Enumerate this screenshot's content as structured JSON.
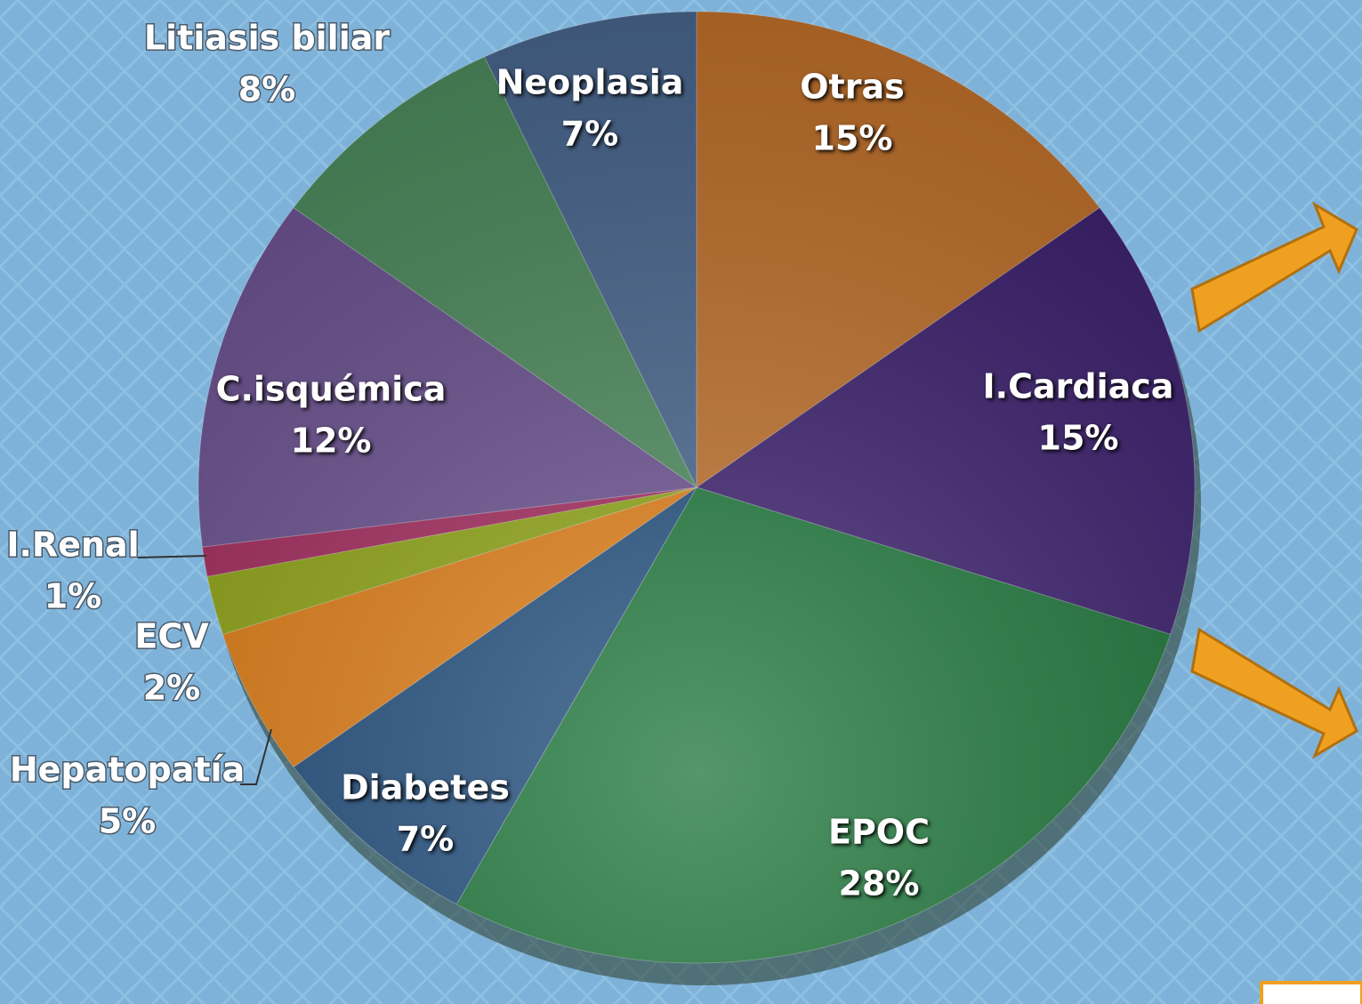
{
  "chart_data": {
    "type": "pie",
    "categories": [
      "Otras",
      "I.Cardiaca",
      "EPOC",
      "Diabetes",
      "Hepatopatía",
      "ECV",
      "I.Renal",
      "C.isquémica",
      "Litiasis biliar",
      "Neoplasia"
    ],
    "values": [
      15,
      15,
      28,
      7,
      5,
      2,
      1,
      12,
      8,
      7
    ],
    "value_labels": [
      "15%",
      "15%",
      "28%",
      "7%",
      "5%",
      "2%",
      "1%",
      "12%",
      "8%",
      "7%"
    ],
    "colors": [
      "#c0702a",
      "#3b1f6e",
      "#1b7538",
      "#1f4c7c",
      "#e07c12",
      "#8ea412",
      "#a3295c",
      "#6a5090",
      "#4b8a5c",
      "#48668e"
    ]
  }
}
